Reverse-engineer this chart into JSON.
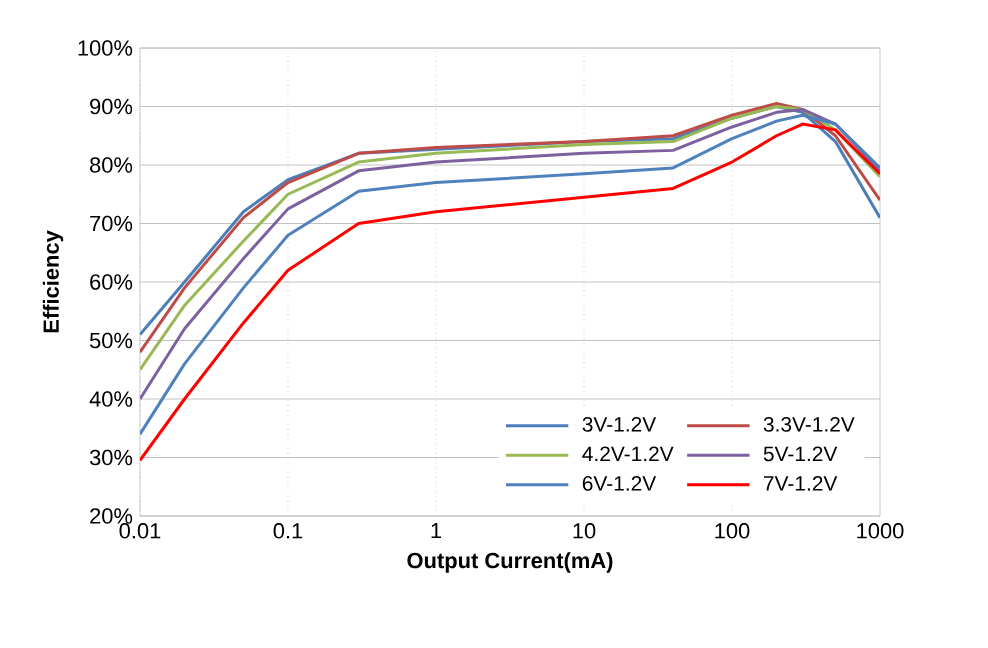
{
  "chart_data": {
    "type": "line",
    "xlabel": "Output Current(mA)",
    "ylabel": "Efficiency",
    "log": "x",
    "grid": true,
    "legend": "bottom right",
    "xlim": [
      0.01,
      1000
    ],
    "xticks": [
      0.01,
      0.1,
      1,
      10,
      100,
      1000
    ],
    "ylim": [
      20,
      100
    ],
    "yticks": [
      {
        "value": 20,
        "label": "20%"
      },
      {
        "value": 30,
        "label": "30%"
      },
      {
        "value": 40,
        "label": "40%"
      },
      {
        "value": 50,
        "label": "50%"
      },
      {
        "value": 60,
        "label": "60%"
      },
      {
        "value": 70,
        "label": "70%"
      },
      {
        "value": 80,
        "label": "80%"
      },
      {
        "value": 90,
        "label": "90%"
      },
      {
        "value": 100,
        "label": "100%"
      }
    ],
    "x": [
      0.01,
      0.02,
      0.05,
      0.1,
      0.3,
      1,
      10,
      40,
      100,
      200,
      300,
      500,
      1000
    ],
    "series": [
      {
        "name": "3V-1.2V",
        "color": "#4a7ebb",
        "values": [
          51,
          60,
          72,
          77.5,
          82,
          null,
          84,
          84.5,
          88,
          90,
          89,
          84,
          71
        ]
      },
      {
        "name": "3.3V-1.2V",
        "color": "#be4b48",
        "values": [
          48,
          59,
          71,
          77,
          82,
          83,
          84,
          85,
          88.5,
          90.5,
          89.5,
          85,
          74
        ]
      },
      {
        "name": "4.2V-1.2V",
        "color": "#98b954",
        "values": [
          45,
          56,
          67,
          75,
          80.5,
          82,
          83.5,
          84,
          88,
          90,
          89.5,
          86,
          78
        ]
      },
      {
        "name": "5V-1.2V",
        "color": "#7d60a0",
        "values": [
          40,
          52,
          64,
          72.5,
          79,
          80.5,
          82,
          82.5,
          86.5,
          89,
          89.5,
          87,
          79
        ]
      },
      {
        "name": "6V-1.2V",
        "color": "#4f81bd",
        "values": [
          34,
          46,
          59,
          68,
          75.5,
          77,
          78.5,
          79.5,
          84.5,
          87.5,
          88.5,
          87,
          79.5
        ]
      },
      {
        "name": "7V-1.2V",
        "color": "#ff0000",
        "values": [
          29.5,
          40,
          53,
          62,
          70,
          72,
          74.5,
          76,
          80.5,
          85,
          87,
          86,
          78.5
        ]
      }
    ]
  }
}
